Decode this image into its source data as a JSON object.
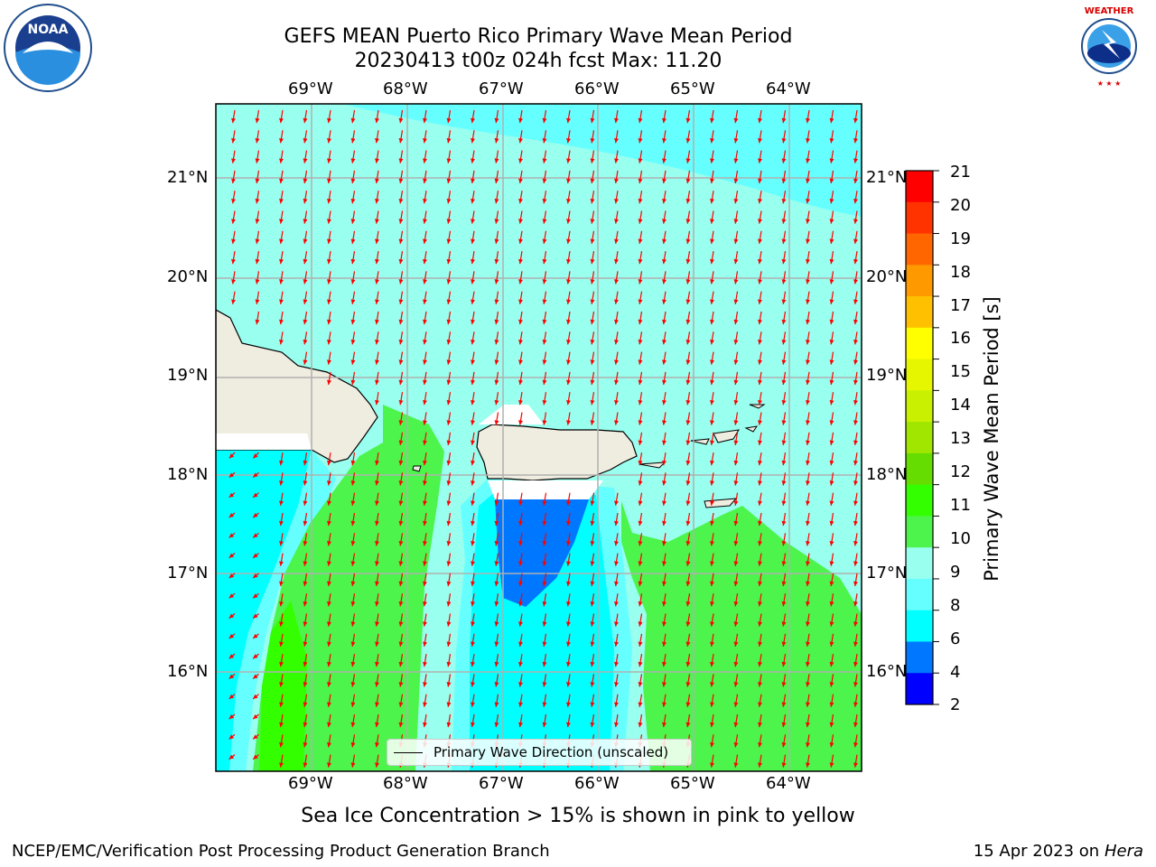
{
  "header": {
    "title_line1": "GEFS MEAN Puerto Rico Primary Wave Mean Period",
    "title_line2": "20230413 t00z 024h fcst   Max: 11.20"
  },
  "logos": {
    "left": {
      "text": "NOAA",
      "ring_text": "NATIONAL OCEANIC AND ATMOSPHERIC ADMINISTRATION · U.S. DEPARTMENT OF COMMERCE"
    },
    "right": {
      "ring_text": "NATIONAL WEATHER SERVICE"
    }
  },
  "map": {
    "lon_labels": [
      "69°W",
      "68°W",
      "67°W",
      "66°W",
      "65°W",
      "64°W"
    ],
    "lat_labels": [
      "21°N",
      "20°N",
      "19°N",
      "18°N",
      "17°N",
      "16°N"
    ],
    "legend_label": "Primary Wave Direction (unscaled)",
    "arrow_color": "#ff0000",
    "land_color": "#efece0"
  },
  "colorbar": {
    "title": "Primary Wave Mean Period [s]",
    "ticks": [
      "21",
      "20",
      "19",
      "18",
      "17",
      "16",
      "15",
      "14",
      "13",
      "12",
      "11",
      "10",
      "9",
      "8",
      "6",
      "4",
      "2"
    ],
    "colors": [
      "#ff0000",
      "#ff3300",
      "#ff6600",
      "#ff9900",
      "#ffc000",
      "#ffff00",
      "#e6f500",
      "#c8f000",
      "#a0e600",
      "#66dd00",
      "#33ff00",
      "#4cf44c",
      "#99ffee",
      "#66ffff",
      "#00ffff",
      "#0077ff",
      "#0000ff"
    ]
  },
  "note": "Sea Ice Concentration > 15% is shown in pink to yellow",
  "footer": {
    "left": "NCEP/EMC/Verification Post Processing Product Generation Branch",
    "right_date": "15 Apr 2023 on",
    "right_host": "Hera"
  }
}
